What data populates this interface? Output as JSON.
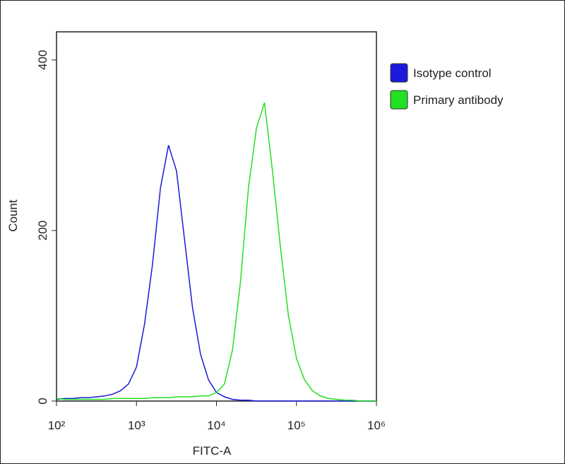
{
  "chart_data": {
    "type": "line",
    "x_label": "FITC-A",
    "y_label": "Count",
    "xscale": "log",
    "xlim": [
      100,
      1000000
    ],
    "ylim": [
      0,
      433
    ],
    "xticks": [
      {
        "value": 100,
        "label": "10²"
      },
      {
        "value": 1000,
        "label": "10³"
      },
      {
        "value": 10000,
        "label": "10⁴"
      },
      {
        "value": 100000,
        "label": "10⁵"
      },
      {
        "value": 1000000,
        "label": "10⁶"
      }
    ],
    "yticks": [
      0,
      200,
      400
    ],
    "legend": "right",
    "x": [
      100,
      126,
      158,
      200,
      251,
      316,
      398,
      501,
      631,
      794,
      1000,
      1259,
      1585,
      1995,
      2512,
      3162,
      3981,
      5012,
      6310,
      7943,
      10000,
      12589,
      15849,
      19953,
      25119,
      31623,
      39811,
      50119,
      63096,
      79433,
      100000,
      125893,
      158489,
      199526,
      251189,
      316228,
      398107,
      501187,
      630957,
      794328,
      1000000
    ],
    "series": [
      {
        "name": "Isotype control",
        "color": "#1a1adc",
        "values": [
          2,
          3,
          3,
          4,
          4,
          5,
          6,
          8,
          12,
          20,
          40,
          90,
          160,
          250,
          300,
          270,
          190,
          110,
          55,
          25,
          10,
          5,
          2,
          1,
          1,
          0,
          0,
          0,
          0,
          0,
          0,
          0,
          0,
          0,
          0,
          0,
          0,
          0,
          0,
          0,
          0
        ]
      },
      {
        "name": "Primary antibody",
        "color": "#22e022",
        "values": [
          3,
          2,
          2,
          2,
          2,
          2,
          2,
          3,
          3,
          3,
          3,
          3,
          4,
          4,
          4,
          5,
          5,
          5,
          6,
          6,
          10,
          20,
          60,
          140,
          250,
          320,
          350,
          270,
          180,
          100,
          50,
          25,
          12,
          6,
          3,
          2,
          1,
          1,
          0,
          0,
          0
        ]
      }
    ]
  }
}
